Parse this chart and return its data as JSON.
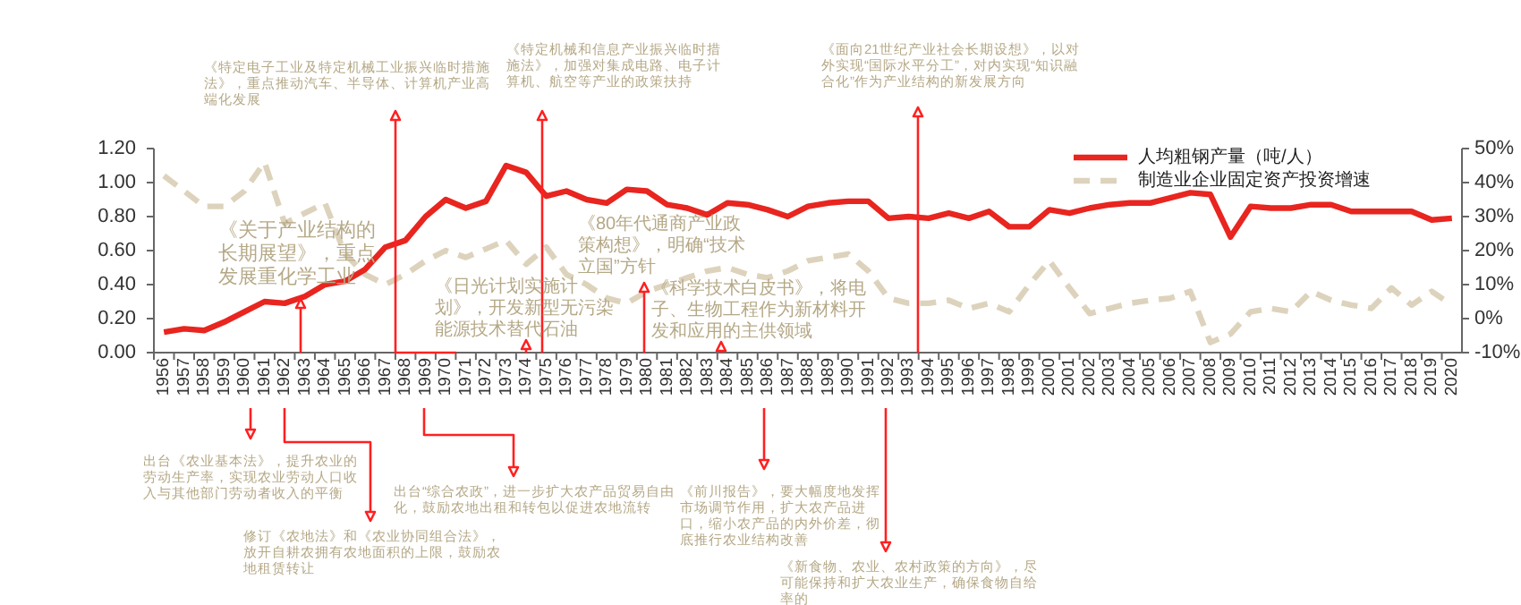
{
  "chart_data": {
    "type": "line",
    "categories": [
      "1956",
      "1957",
      "1958",
      "1959",
      "1960",
      "1961",
      "1962",
      "1963",
      "1964",
      "1965",
      "1966",
      "1967",
      "1968",
      "1969",
      "1970",
      "1971",
      "1972",
      "1973",
      "1974",
      "1975",
      "1976",
      "1977",
      "1978",
      "1979",
      "1980",
      "1981",
      "1982",
      "1983",
      "1984",
      "1985",
      "1986",
      "1987",
      "1988",
      "1989",
      "1990",
      "1991",
      "1992",
      "1993",
      "1994",
      "1995",
      "1996",
      "1997",
      "1998",
      "1999",
      "2000",
      "2001",
      "2002",
      "2003",
      "2004",
      "2005",
      "2006",
      "2007",
      "2008",
      "2009",
      "2010",
      "2011",
      "2012",
      "2013",
      "2014",
      "2015",
      "2016",
      "2017",
      "2018",
      "2019",
      "2020"
    ],
    "series": [
      {
        "name": "人均粗钢产量（吨/人）",
        "color": "#e8251f",
        "line_style": "solid",
        "values": [
          0.12,
          0.14,
          0.13,
          0.18,
          0.24,
          0.3,
          0.29,
          0.33,
          0.4,
          0.42,
          0.49,
          0.62,
          0.66,
          0.8,
          0.9,
          0.85,
          0.89,
          1.1,
          1.06,
          0.92,
          0.95,
          0.9,
          0.88,
          0.96,
          0.95,
          0.87,
          0.85,
          0.81,
          0.88,
          0.87,
          0.84,
          0.8,
          0.86,
          0.88,
          0.89,
          0.89,
          0.79,
          0.8,
          0.79,
          0.82,
          0.79,
          0.83,
          0.74,
          0.74,
          0.84,
          0.82,
          0.85,
          0.87,
          0.88,
          0.88,
          0.91,
          0.94,
          0.93,
          0.68,
          0.86,
          0.85,
          0.85,
          0.87,
          0.87,
          0.83,
          0.83,
          0.83,
          0.83,
          0.78,
          0.79
        ]
      },
      {
        "name": "制造业企业固定资产投资增速",
        "color": "#ddd3bd",
        "line_style": "dashed",
        "axis": "y2",
        "values": [
          42,
          37.5,
          33,
          33,
          37.5,
          46,
          28,
          31,
          34,
          19,
          13,
          10,
          13,
          17,
          20,
          18,
          20.5,
          23,
          16,
          21,
          13,
          10,
          6,
          4.5,
          8,
          10,
          12,
          14,
          15,
          13,
          12,
          14,
          17,
          18,
          19,
          14,
          6,
          4.5,
          4.5,
          5.4,
          3,
          4.5,
          2,
          10,
          17,
          9,
          1.5,
          3,
          4.5,
          5.4,
          6,
          8,
          -7,
          -4.5,
          2,
          3,
          2,
          8,
          5.4,
          4,
          3,
          9,
          4,
          8,
          4
        ]
      }
    ],
    "ylim": [
      0,
      1.2
    ],
    "yticks": [
      {
        "value": 0,
        "label": "0.00"
      },
      {
        "value": 0.2,
        "label": "0.20"
      },
      {
        "value": 0.4,
        "label": "0.40"
      },
      {
        "value": 0.6,
        "label": "0.60"
      },
      {
        "value": 0.8,
        "label": "0.80"
      },
      {
        "value": 1.0,
        "label": "1.00"
      },
      {
        "value": 1.2,
        "label": "1.20"
      }
    ],
    "y2lim": [
      -10,
      50
    ],
    "y2ticks": [
      {
        "value": -10,
        "label": "-10%"
      },
      {
        "value": 0,
        "label": "0%"
      },
      {
        "value": 10,
        "label": "10%"
      },
      {
        "value": 20,
        "label": "20%"
      },
      {
        "value": 30,
        "label": "30%"
      },
      {
        "value": 40,
        "label": "40%"
      },
      {
        "value": 50,
        "label": "50%"
      }
    ],
    "grid": false,
    "legend": "top right",
    "marker": "none",
    "annotations": [
      "《特定电子工业及特定机械工业振兴临时措施法》，重点推动汽车、半导体、计算机产业高端化发展",
      "《特定机械和信息产业振兴临时措施法》，加强对集成电路、电子计算机、航空等产业的政策扶持",
      "《面向21世纪产业社会长期设想》，以对外实现“国际水平分工”，对内实现“知识融合化”作为产业结构的新发展方向",
      "《关于产业结构的长期展望》，重点发展重化学工业",
      "《日光计划实施计划》，开发新型无污染能源技术替代石油",
      "《80年代通商产业政策构想》，明确“技术立国”方针",
      "《科学技术白皮书》，将电子、生物工程作为新材料开发和应用的主供领域",
      "出台《农业基本法》，提升农业的劳动生产率，实现农业劳动人口收入与其他部门劳动者收入的平衡",
      "修订《农地法》和《农业协同组合法》，放开自耕农拥有农地面积的上限，鼓励农地租赁转让",
      "出台“综合农政”，进一步扩大农产品贸易自由化，鼓励农地出租和转包以促进农地流转",
      "《前川报告》，要大幅度地发挥市场调节作用，扩大农产品进口，缩小农产品的内外价差，彻底推行农业结构改善",
      "《新食物、农业、农村政策的方向》，尽可能保持和扩大农业生产，确保食物自给率的"
    ]
  }
}
